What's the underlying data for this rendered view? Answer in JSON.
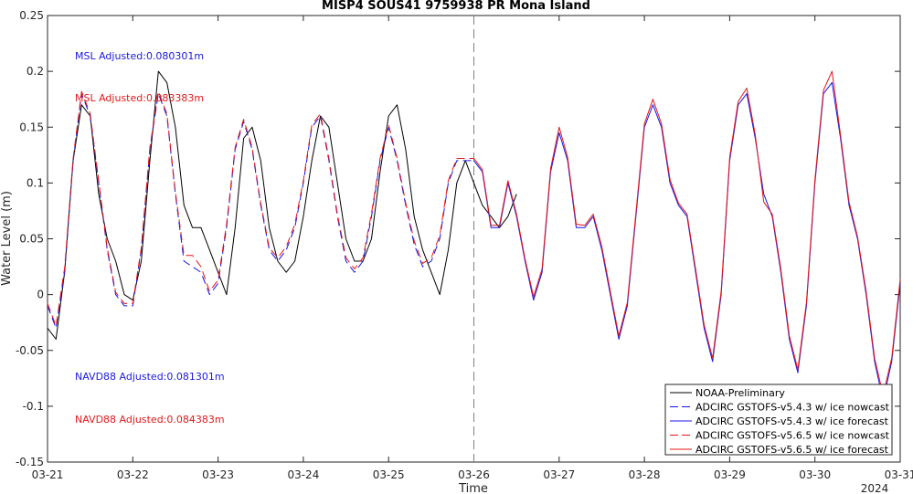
{
  "chart_data": {
    "type": "line",
    "title": "MISP4 SOUS41 9759938 PR Mona Island",
    "xlabel": "Time",
    "ylabel": "Water Level (m)",
    "xlim": [
      "03-21",
      "03-31"
    ],
    "ylim": [
      -0.15,
      0.25
    ],
    "x_ticks": [
      "03-21",
      "03-22",
      "03-23",
      "03-24",
      "03-25",
      "03-26",
      "03-27",
      "03-28",
      "03-29",
      "03-30",
      "03-31"
    ],
    "y_ticks": [
      -0.15,
      -0.1,
      -0.05,
      0,
      0.05,
      0.1,
      0.15,
      0.2,
      0.25
    ],
    "year_label": "2024",
    "forecast_start": "03-26",
    "grid": false,
    "legend_position": "bottom-right",
    "annotations": [
      {
        "text": "MSL Adjusted:0.080301m",
        "color": "#1a1adb"
      },
      {
        "text": "MSL Adjusted:0.083383m",
        "color": "#e01a1a"
      },
      {
        "text": "NAVD88 Adjusted:0.081301m",
        "color": "#1a1adb"
      },
      {
        "text": "NAVD88 Adjusted:0.084383m",
        "color": "#e01a1a"
      }
    ],
    "series": [
      {
        "name": "NOAA-Preliminary",
        "color": "#000000",
        "dash": "solid",
        "x": [
          0,
          0.1,
          0.2,
          0.3,
          0.4,
          0.5,
          0.6,
          0.7,
          0.8,
          0.9,
          1.0,
          1.1,
          1.2,
          1.3,
          1.4,
          1.5,
          1.6,
          1.7,
          1.8,
          1.9,
          2.0,
          2.1,
          2.2,
          2.3,
          2.4,
          2.5,
          2.6,
          2.7,
          2.8,
          2.9,
          3.0,
          3.1,
          3.2,
          3.3,
          3.4,
          3.5,
          3.6,
          3.7,
          3.8,
          3.9,
          4.0,
          4.1,
          4.2,
          4.3,
          4.4,
          4.5,
          4.6,
          4.7,
          4.8,
          4.9,
          5.0,
          5.1,
          5.2,
          5.3,
          5.4,
          5.5
        ],
        "values": [
          -0.03,
          -0.04,
          0.02,
          0.12,
          0.17,
          0.16,
          0.09,
          0.05,
          0.03,
          0.0,
          -0.005,
          0.03,
          0.12,
          0.2,
          0.19,
          0.15,
          0.08,
          0.06,
          0.06,
          0.04,
          0.02,
          0.0,
          0.06,
          0.14,
          0.15,
          0.12,
          0.06,
          0.03,
          0.02,
          0.03,
          0.07,
          0.12,
          0.16,
          0.15,
          0.1,
          0.05,
          0.03,
          0.03,
          0.05,
          0.11,
          0.16,
          0.17,
          0.13,
          0.07,
          0.04,
          0.02,
          0.0,
          0.04,
          0.1,
          0.12,
          0.1,
          0.08,
          0.07,
          0.06,
          0.07,
          0.09
        ]
      },
      {
        "name": "ADCIRC GSTOFS-v5.4.3 w/ ice nowcast",
        "color": "#1414e6",
        "dash": "dashed",
        "x": [
          0,
          0.1,
          0.2,
          0.3,
          0.4,
          0.5,
          0.6,
          0.7,
          0.8,
          0.9,
          1.0,
          1.1,
          1.2,
          1.3,
          1.4,
          1.5,
          1.6,
          1.7,
          1.8,
          1.9,
          2.0,
          2.1,
          2.2,
          2.3,
          2.4,
          2.5,
          2.6,
          2.7,
          2.8,
          2.9,
          3.0,
          3.1,
          3.2,
          3.3,
          3.4,
          3.5,
          3.6,
          3.7,
          3.8,
          3.9,
          4.0,
          4.1,
          4.2,
          4.3,
          4.4,
          4.5,
          4.6,
          4.7,
          4.8,
          4.9,
          5.0
        ],
        "values": [
          -0.01,
          -0.03,
          0.02,
          0.12,
          0.18,
          0.16,
          0.1,
          0.04,
          0.0,
          -0.01,
          -0.01,
          0.04,
          0.13,
          0.18,
          0.16,
          0.09,
          0.03,
          0.025,
          0.02,
          0.0,
          0.01,
          0.06,
          0.13,
          0.155,
          0.13,
          0.08,
          0.04,
          0.03,
          0.04,
          0.06,
          0.1,
          0.15,
          0.16,
          0.12,
          0.07,
          0.03,
          0.02,
          0.03,
          0.07,
          0.12,
          0.15,
          0.12,
          0.08,
          0.045,
          0.025,
          0.03,
          0.05,
          0.1,
          0.12,
          0.12,
          0.12
        ]
      },
      {
        "name": "ADCIRC GSTOFS-v5.4.3 w/ ice forecast",
        "color": "#1414e6",
        "dash": "solid",
        "x": [
          5.0,
          5.1,
          5.2,
          5.3,
          5.4,
          5.5,
          5.6,
          5.7,
          5.8,
          5.9,
          6.0,
          6.1,
          6.2,
          6.3,
          6.4,
          6.5,
          6.6,
          6.7,
          6.8,
          6.9,
          7.0,
          7.1,
          7.2,
          7.3,
          7.4,
          7.5,
          7.6,
          7.7,
          7.8,
          7.9,
          8.0,
          8.1,
          8.2,
          8.3,
          8.4,
          8.5,
          8.6,
          8.7,
          8.8,
          8.9,
          9.0,
          9.1,
          9.2,
          9.3,
          9.4,
          9.5,
          9.6,
          9.7,
          9.8,
          9.9,
          10.0
        ],
        "values": [
          0.12,
          0.11,
          0.06,
          0.06,
          0.1,
          0.07,
          0.03,
          -0.005,
          0.02,
          0.11,
          0.145,
          0.12,
          0.06,
          0.06,
          0.07,
          0.04,
          0.0,
          -0.04,
          -0.01,
          0.07,
          0.15,
          0.17,
          0.15,
          0.1,
          0.08,
          0.07,
          0.02,
          -0.03,
          -0.06,
          0.0,
          0.12,
          0.17,
          0.18,
          0.14,
          0.09,
          0.07,
          0.02,
          -0.04,
          -0.07,
          -0.01,
          0.1,
          0.18,
          0.19,
          0.14,
          0.08,
          0.05,
          0.0,
          -0.06,
          -0.095,
          -0.06,
          0.01
        ]
      },
      {
        "name": "ADCIRC GSTOFS-v5.6.5 w/ ice nowcast",
        "color": "#e61414",
        "dash": "dashed",
        "x": [
          0,
          0.1,
          0.2,
          0.3,
          0.4,
          0.5,
          0.6,
          0.7,
          0.8,
          0.9,
          1.0,
          1.1,
          1.2,
          1.3,
          1.4,
          1.5,
          1.6,
          1.7,
          1.8,
          1.9,
          2.0,
          2.1,
          2.2,
          2.3,
          2.4,
          2.5,
          2.6,
          2.7,
          2.8,
          2.9,
          3.0,
          3.1,
          3.2,
          3.3,
          3.4,
          3.5,
          3.6,
          3.7,
          3.8,
          3.9,
          4.0,
          4.1,
          4.2,
          4.3,
          4.4,
          4.5,
          4.6,
          4.7,
          4.8,
          4.9,
          5.0
        ],
        "values": [
          -0.008,
          -0.028,
          0.024,
          0.122,
          0.182,
          0.162,
          0.102,
          0.042,
          0.002,
          -0.008,
          -0.008,
          0.042,
          0.132,
          0.182,
          0.162,
          0.092,
          0.035,
          0.035,
          0.025,
          0.003,
          0.013,
          0.063,
          0.132,
          0.157,
          0.132,
          0.082,
          0.042,
          0.033,
          0.043,
          0.063,
          0.102,
          0.152,
          0.162,
          0.122,
          0.072,
          0.033,
          0.023,
          0.033,
          0.073,
          0.122,
          0.152,
          0.122,
          0.082,
          0.048,
          0.028,
          0.033,
          0.053,
          0.102,
          0.122,
          0.122,
          0.122
        ]
      },
      {
        "name": "ADCIRC GSTOFS-v5.6.5 w/ ice forecast",
        "color": "#e61414",
        "dash": "solid",
        "x": [
          5.0,
          5.1,
          5.2,
          5.3,
          5.4,
          5.5,
          5.6,
          5.7,
          5.8,
          5.9,
          6.0,
          6.1,
          6.2,
          6.3,
          6.4,
          6.5,
          6.6,
          6.7,
          6.8,
          6.9,
          7.0,
          7.1,
          7.2,
          7.3,
          7.4,
          7.5,
          7.6,
          7.7,
          7.8,
          7.9,
          8.0,
          8.1,
          8.2,
          8.3,
          8.4,
          8.5,
          8.6,
          8.7,
          8.8,
          8.9,
          9.0,
          9.1,
          9.2,
          9.3,
          9.4,
          9.5,
          9.6,
          9.7,
          9.8,
          9.9,
          10.0
        ],
        "values": [
          0.122,
          0.112,
          0.062,
          0.062,
          0.102,
          0.072,
          0.032,
          -0.002,
          0.023,
          0.113,
          0.15,
          0.123,
          0.063,
          0.062,
          0.072,
          0.043,
          0.003,
          -0.037,
          -0.007,
          0.073,
          0.153,
          0.175,
          0.153,
          0.103,
          0.082,
          0.072,
          0.023,
          -0.027,
          -0.057,
          0.003,
          0.123,
          0.173,
          0.185,
          0.143,
          0.083,
          0.072,
          0.023,
          -0.037,
          -0.067,
          -0.007,
          0.103,
          0.183,
          0.2,
          0.143,
          0.083,
          0.052,
          0.003,
          -0.057,
          -0.09,
          -0.057,
          0.014
        ]
      }
    ]
  }
}
